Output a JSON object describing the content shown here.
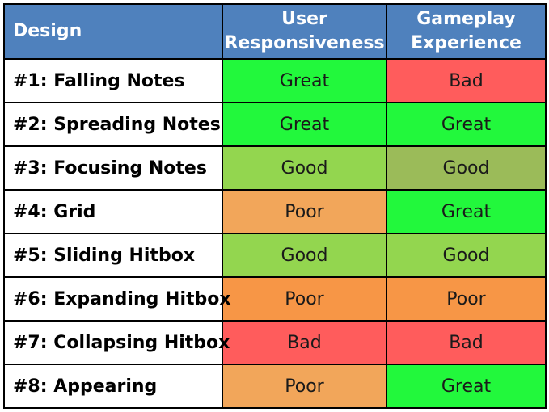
{
  "colors": {
    "header_bg": "#4f81bd",
    "Great": "#22f83c",
    "Good": "#93d64f",
    "Good_alt": "#9bbb59",
    "Poor": "#f2a65a",
    "Poor_alt": "#f79646",
    "Bad": "#ff5c5c"
  },
  "table": {
    "headers": [
      "Design",
      "User Responsiveness",
      "Gameplay Experience"
    ],
    "header_lines": [
      [
        "Design"
      ],
      [
        "User",
        "Responsiveness"
      ],
      [
        "Gameplay",
        "Experience"
      ]
    ],
    "rows": [
      {
        "design": "#1: Falling Notes",
        "user": "Great",
        "gameplay": "Bad",
        "user_color": "#22f83c",
        "gameplay_color": "#ff5c5c"
      },
      {
        "design": "#2: Spreading Notes",
        "user": "Great",
        "gameplay": "Great",
        "user_color": "#22f83c",
        "gameplay_color": "#22f83c"
      },
      {
        "design": "#3: Focusing Notes",
        "user": "Good",
        "gameplay": "Good",
        "user_color": "#93d64f",
        "gameplay_color": "#9bbb59"
      },
      {
        "design": "#4: Grid",
        "user": "Poor",
        "gameplay": "Great",
        "user_color": "#f2a65a",
        "gameplay_color": "#22f83c"
      },
      {
        "design": "#5: Sliding Hitbox",
        "user": "Good",
        "gameplay": "Good",
        "user_color": "#93d64f",
        "gameplay_color": "#93d64f"
      },
      {
        "design": "#6: Expanding Hitbox",
        "user": "Poor",
        "gameplay": "Poor",
        "user_color": "#f79646",
        "gameplay_color": "#f79646"
      },
      {
        "design": "#7: Collapsing Hitbox",
        "user": "Bad",
        "gameplay": "Bad",
        "user_color": "#ff5c5c",
        "gameplay_color": "#ff5c5c"
      },
      {
        "design": "#8: Appearing",
        "user": "Poor",
        "gameplay": "Great",
        "user_color": "#f2a65a",
        "gameplay_color": "#22f83c"
      }
    ]
  }
}
